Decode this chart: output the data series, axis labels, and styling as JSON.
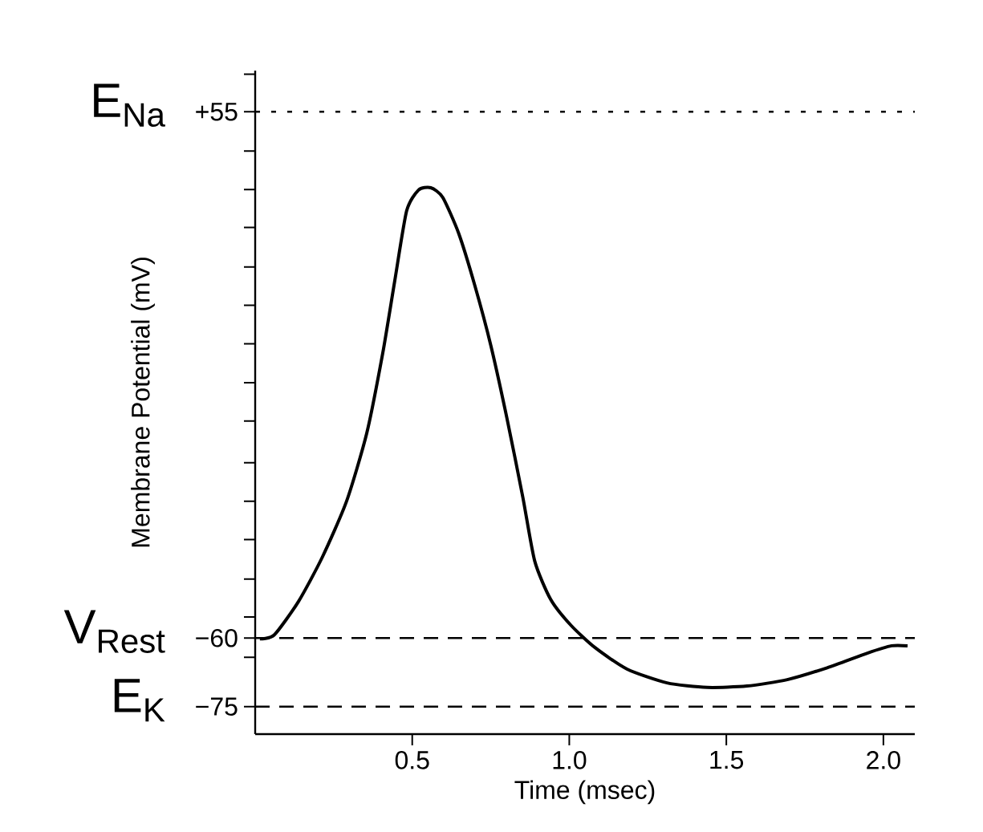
{
  "chart_data": {
    "type": "line",
    "xlabel": "Time (msec)",
    "ylabel": "Membrane Potential (mV)",
    "xlim": [
      0,
      2.1
    ],
    "ylim": [
      -81,
      64
    ],
    "xticks": [
      {
        "value": 0.5,
        "label": "0.5"
      },
      {
        "value": 1.0,
        "label": "1.0"
      },
      {
        "value": 1.5,
        "label": "1.5"
      },
      {
        "value": 2.0,
        "label": "2.0"
      }
    ],
    "yticks": [
      {
        "value": 63.2,
        "label": null
      },
      {
        "value": 55,
        "label": "+55"
      },
      {
        "value": 46.4,
        "label": null
      },
      {
        "value": 38.0,
        "label": null
      },
      {
        "value": 29.7,
        "label": null
      },
      {
        "value": 21.1,
        "label": null
      },
      {
        "value": 12.7,
        "label": null
      },
      {
        "value": 4.3,
        "label": null
      },
      {
        "value": -4.2,
        "label": null
      },
      {
        "value": -12.6,
        "label": null
      },
      {
        "value": -21.7,
        "label": null
      },
      {
        "value": -30.1,
        "label": null
      },
      {
        "value": -38.5,
        "label": null
      },
      {
        "value": -47.1,
        "label": null
      },
      {
        "value": -55.4,
        "label": null
      },
      {
        "value": -60,
        "label": "−60"
      },
      {
        "value": -64.2,
        "label": null
      },
      {
        "value": -75,
        "label": "−75"
      }
    ],
    "ref_lines": [
      {
        "axis": "y",
        "value": 55,
        "label": "E$_{Na}$",
        "color": "#000000",
        "line_style": "dotted"
      },
      {
        "axis": "y",
        "value": -60,
        "label": "V$_{Rest}$",
        "color": "#000000",
        "line_style": "dashed"
      },
      {
        "axis": "y",
        "value": -75,
        "label": "E$_{K}$",
        "color": "#000000",
        "line_style": "dashed"
      }
    ],
    "line_style": "solid",
    "series": [
      {
        "color": "#000000",
        "x": [
          0.015,
          0.061,
          0.138,
          0.214,
          0.291,
          0.355,
          0.406,
          0.444,
          0.482,
          0.52,
          0.559,
          0.597,
          0.648,
          0.699,
          0.75,
          0.801,
          0.852,
          0.89,
          0.941,
          1.005,
          1.082,
          1.184,
          1.311,
          1.439,
          1.566,
          1.694,
          1.821,
          1.949,
          2.026,
          2.077
        ],
        "values": [
          -60.2,
          -59.3,
          -52.0,
          -42.3,
          -30.1,
          -15.3,
          2.2,
          17.9,
          33.3,
          37.9,
          38.4,
          36.3,
          28.4,
          17.1,
          4.0,
          -11.8,
          -29.2,
          -43.2,
          -51.6,
          -57.2,
          -62.1,
          -66.8,
          -69.8,
          -70.8,
          -70.5,
          -69.1,
          -66.5,
          -63.3,
          -61.7,
          -61.7
        ]
      }
    ]
  }
}
